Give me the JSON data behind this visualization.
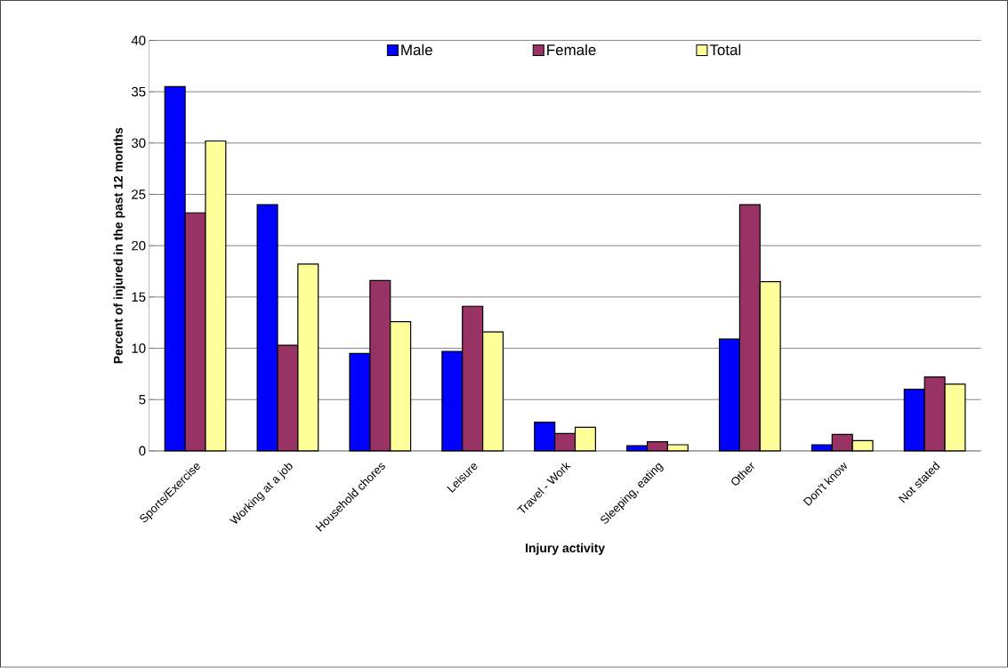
{
  "chart_data": {
    "type": "bar",
    "xlabel": "Injury activity",
    "ylabel": "Percent of injured in the past 12 months",
    "categories": [
      "Sports/Exercise",
      "Working at a job",
      "Household chores",
      "Leisure",
      "Travel - Work",
      "Sleeping, eating",
      "Other",
      "Don't know",
      "Not stated"
    ],
    "series": [
      {
        "name": "Male",
        "color": "#0000ff",
        "values": [
          35.5,
          24.0,
          9.5,
          9.7,
          2.8,
          0.5,
          10.9,
          0.6,
          6.0
        ]
      },
      {
        "name": "Female",
        "color": "#993366",
        "values": [
          23.2,
          10.3,
          16.6,
          14.1,
          1.7,
          0.9,
          24.0,
          1.6,
          7.2
        ]
      },
      {
        "name": "Total",
        "color": "#ffff99",
        "values": [
          30.2,
          18.2,
          12.6,
          11.6,
          2.3,
          0.6,
          16.5,
          1.0,
          6.5
        ]
      }
    ],
    "ylim": [
      0,
      40
    ],
    "yticks": [
      0,
      5,
      10,
      15,
      20,
      25,
      30,
      35,
      40
    ],
    "grid": "y",
    "legend": "top"
  }
}
